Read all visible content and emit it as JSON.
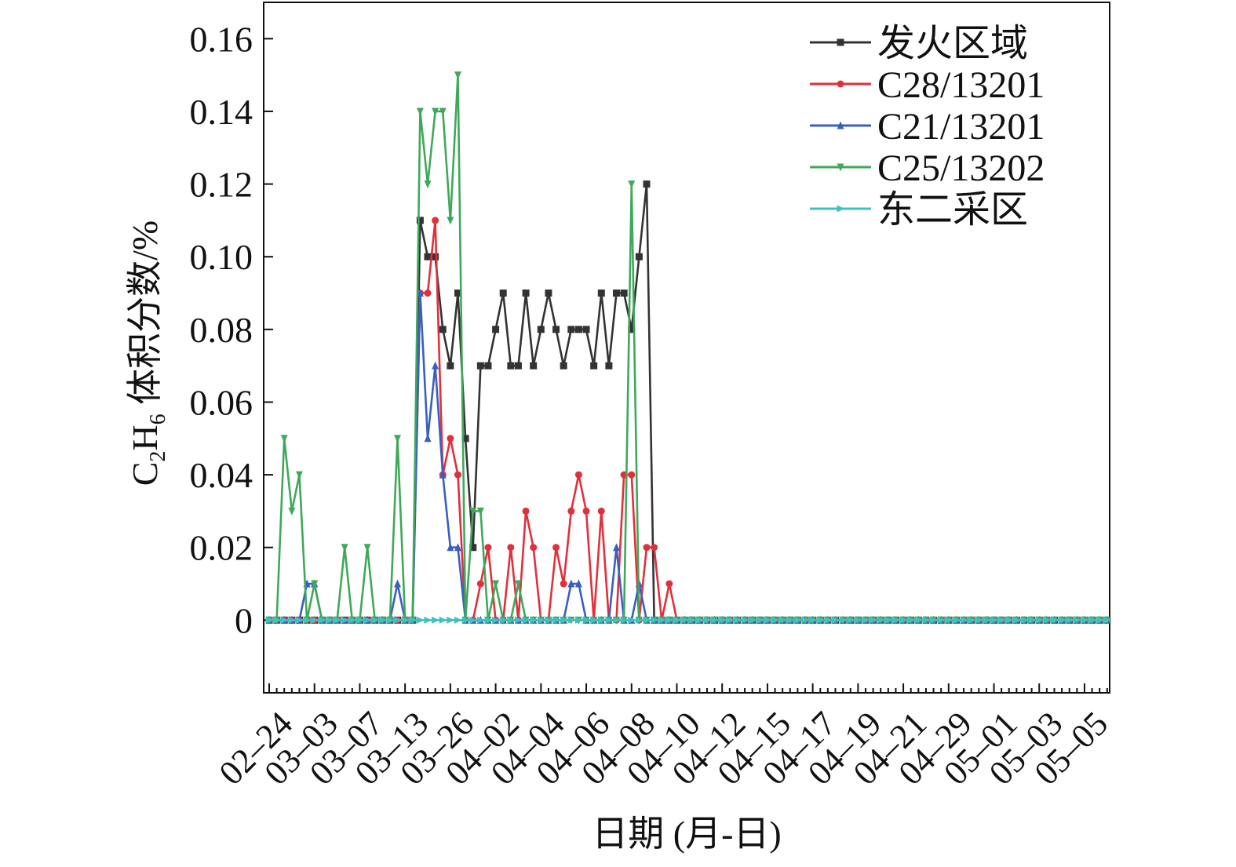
{
  "chart_data": {
    "type": "line",
    "ylabel": {
      "pre": "C",
      "sub1": "2",
      "mid": "H",
      "sub2": "6",
      "post": " 体积分数/%"
    },
    "xlabel": "日期 (月-日)",
    "ylim": [
      -0.02,
      0.17
    ],
    "yticks": [
      0,
      0.02,
      0.04,
      0.06,
      0.08,
      0.1,
      0.12,
      0.14,
      0.16
    ],
    "ytick_labels": [
      "0",
      "0.02",
      "0.04",
      "0.06",
      "0.08",
      "0.10",
      "0.12",
      "0.14",
      "0.16"
    ],
    "n_points": 112,
    "xtick_labels": [
      "02–24",
      "03–03",
      "03–07",
      "03–13",
      "03–26",
      "04–02",
      "04–04",
      "04–06",
      "04–08",
      "04–10",
      "04–12",
      "04–15",
      "04–17",
      "04–19",
      "04–21",
      "04–29",
      "05–01",
      "05–03",
      "05–05"
    ],
    "xtick_indices": [
      0,
      6,
      12,
      18,
      24,
      30,
      36,
      42,
      48,
      54,
      60,
      66,
      72,
      78,
      84,
      90,
      96,
      102,
      108
    ],
    "legend_position": "top-right",
    "grid": false,
    "series": [
      {
        "name": "发火区域",
        "color": "#333333",
        "marker": "square",
        "values": [
          0,
          0,
          0,
          0,
          0,
          0,
          0,
          0,
          0,
          0,
          0,
          0,
          0,
          0,
          0,
          0,
          0,
          0,
          0,
          0,
          0.11,
          0.1,
          0.1,
          0.08,
          0.07,
          0.09,
          0.05,
          0.02,
          0.07,
          0.07,
          0.08,
          0.09,
          0.07,
          0.07,
          0.09,
          0.07,
          0.08,
          0.09,
          0.08,
          0.07,
          0.08,
          0.08,
          0.08,
          0.07,
          0.09,
          0.07,
          0.09,
          0.09,
          0.08,
          0.1,
          0.12,
          0,
          0,
          0,
          0,
          0,
          0,
          0,
          0,
          0,
          0,
          0,
          0,
          0,
          0,
          0,
          0,
          0,
          0,
          0,
          0,
          0,
          0,
          0,
          0,
          0,
          0,
          0,
          0,
          0,
          0,
          0,
          0,
          0,
          0,
          0,
          0,
          0,
          0,
          0,
          0,
          0,
          0,
          0,
          0,
          0,
          0,
          0,
          0,
          0,
          0,
          0,
          0,
          0,
          0,
          0,
          0,
          0,
          0,
          0,
          0,
          0
        ]
      },
      {
        "name": "C28/13201",
        "color": "#e0303c",
        "marker": "circle",
        "values": [
          0,
          0,
          0,
          0,
          0,
          0,
          0,
          0,
          0,
          0,
          0,
          0,
          0,
          0,
          0,
          0,
          0,
          0,
          0,
          0,
          0.09,
          0.09,
          0.11,
          0.04,
          0.05,
          0.04,
          0,
          0,
          0.01,
          0.02,
          0,
          0,
          0.02,
          0,
          0.03,
          0.02,
          0,
          0,
          0.02,
          0.01,
          0.03,
          0.04,
          0.03,
          0,
          0.03,
          0,
          0,
          0.04,
          0.04,
          0,
          0.02,
          0.02,
          0,
          0.01,
          0,
          0,
          0,
          0,
          0,
          0,
          0,
          0,
          0,
          0,
          0,
          0,
          0,
          0,
          0,
          0,
          0,
          0,
          0,
          0,
          0,
          0,
          0,
          0,
          0,
          0,
          0,
          0,
          0,
          0,
          0,
          0,
          0,
          0,
          0,
          0,
          0,
          0,
          0,
          0,
          0,
          0,
          0,
          0,
          0,
          0,
          0,
          0,
          0,
          0,
          0,
          0,
          0,
          0,
          0,
          0,
          0,
          0
        ]
      },
      {
        "name": "C21/13201",
        "color": "#3a5fbf",
        "marker": "triangle-up",
        "values": [
          0,
          0,
          0,
          0,
          0,
          0.01,
          0.01,
          0,
          0,
          0,
          0,
          0,
          0,
          0,
          0,
          0,
          0,
          0.01,
          0,
          0,
          0.09,
          0.05,
          0.07,
          0.04,
          0.02,
          0.02,
          0,
          0,
          0,
          0,
          0,
          0,
          0,
          0,
          0,
          0,
          0,
          0,
          0,
          0,
          0.01,
          0.01,
          0,
          0,
          0,
          0,
          0.02,
          0,
          0,
          0.01,
          0,
          0,
          0,
          0,
          0,
          0,
          0,
          0,
          0,
          0,
          0,
          0,
          0,
          0,
          0,
          0,
          0,
          0,
          0,
          0,
          0,
          0,
          0,
          0,
          0,
          0,
          0,
          0,
          0,
          0,
          0,
          0,
          0,
          0,
          0,
          0,
          0,
          0,
          0,
          0,
          0,
          0,
          0,
          0,
          0,
          0,
          0,
          0,
          0,
          0,
          0,
          0,
          0,
          0,
          0,
          0,
          0,
          0,
          0,
          0,
          0,
          0
        ]
      },
      {
        "name": "C25/13202",
        "color": "#3fa85a",
        "marker": "triangle-down",
        "values": [
          0,
          0,
          0.05,
          0.03,
          0.04,
          0,
          0.01,
          0,
          0,
          0,
          0.02,
          0,
          0,
          0.02,
          0,
          0,
          0,
          0.05,
          0,
          0,
          0.14,
          0.12,
          0.14,
          0.14,
          0.11,
          0.15,
          0,
          0.03,
          0.03,
          0,
          0.01,
          0,
          0,
          0.01,
          0,
          0,
          0,
          0,
          0,
          0,
          0,
          0,
          0,
          0,
          0,
          0,
          0,
          0,
          0.12,
          0,
          0,
          0,
          0,
          0,
          0,
          0,
          0,
          0,
          0,
          0,
          0,
          0,
          0,
          0,
          0,
          0,
          0,
          0,
          0,
          0,
          0,
          0,
          0,
          0,
          0,
          0,
          0,
          0,
          0,
          0,
          0,
          0,
          0,
          0,
          0,
          0,
          0,
          0,
          0,
          0,
          0,
          0,
          0,
          0,
          0,
          0,
          0,
          0,
          0,
          0,
          0,
          0,
          0,
          0,
          0,
          0,
          0,
          0,
          0,
          0,
          0,
          0
        ]
      },
      {
        "name": "东二采区",
        "color": "#40c0c0",
        "marker": "triangle-right",
        "values": [
          0,
          0,
          0,
          0,
          0,
          0,
          0,
          0,
          0,
          0,
          0,
          0,
          0,
          0,
          0,
          0,
          0,
          0,
          0,
          0,
          0,
          0,
          0,
          0,
          0,
          0,
          0,
          0,
          0,
          0,
          0,
          0,
          0,
          0,
          0,
          0,
          0,
          0,
          0,
          0,
          0,
          0,
          0,
          0,
          0,
          0,
          0,
          0,
          0,
          0,
          0,
          0,
          0,
          0,
          0,
          0,
          0,
          0,
          0,
          0,
          0,
          0,
          0,
          0,
          0,
          0,
          0,
          0,
          0,
          0,
          0,
          0,
          0,
          0,
          0,
          0,
          0,
          0,
          0,
          0,
          0,
          0,
          0,
          0,
          0,
          0,
          0,
          0,
          0,
          0,
          0,
          0,
          0,
          0,
          0,
          0,
          0,
          0,
          0,
          0,
          0,
          0,
          0,
          0,
          0,
          0,
          0,
          0,
          0,
          0,
          0,
          0
        ]
      }
    ]
  }
}
